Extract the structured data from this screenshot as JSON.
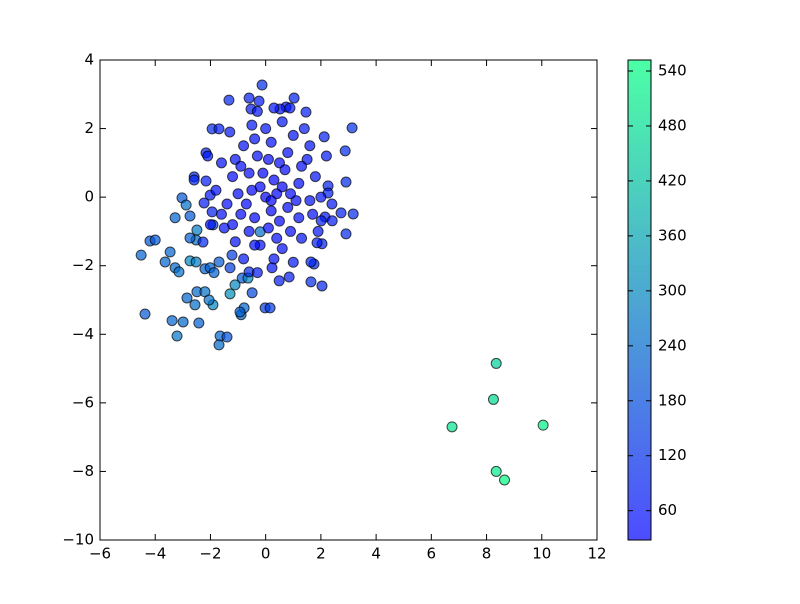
{
  "chart_data": {
    "type": "scatter",
    "x": [
      8.35,
      8.25,
      6.75,
      10.05,
      8.35,
      8.65,
      -4.51,
      -4.37,
      -4.19,
      -4.0,
      -3.64,
      -3.46,
      -3.28,
      -3.14,
      -3.39,
      -3.21,
      -2.99,
      -2.85,
      -2.56,
      -2.42,
      -2.49,
      -2.2,
      -1.91,
      -2.05,
      -1.65,
      -1.4,
      -1.69,
      -1.29,
      -1.11,
      -0.89,
      -0.78,
      -0.93,
      -0.49,
      -0.02,
      0.16,
      -2.74,
      -2.52,
      -2.52,
      -2.49,
      -3.03,
      -2.88,
      -2.74,
      -3.28,
      -2.74,
      -2.2,
      -2.01,
      -1.87,
      -1.69,
      -1.29,
      -0.85,
      -0.64,
      -0.6,
      -1.22,
      -0.2,
      -1.91,
      -2.27,
      -0.13,
      -1.33,
      -0.6,
      -0.24,
      1.03,
      -0.53,
      0.74,
      0.88,
      0.52,
      1.46,
      -1.94,
      -1.69,
      3.13,
      2.12,
      2.88,
      -2.16,
      -2.59,
      -2.59,
      -2.16,
      2.91,
      2.26,
      2.26,
      3.17,
      2.73,
      2.15,
      2.01,
      2.41,
      2.91,
      2.04,
      1.86,
      2.04,
      1.64,
      1.75,
      1.64,
      0.85,
      0.49,
      0.23,
      -1.94,
      -2.01,
      -2.23,
      0,
      0.3,
      -0.5,
      0.8,
      -0.9,
      0.5,
      -0.3,
      1.2,
      -1.2,
      0.1,
      -0.6,
      0.9,
      1.5,
      -1.4,
      0.2,
      -0.8,
      1.0,
      -1.6,
      1.7,
      -0.2,
      0.6,
      1.3,
      -1.1,
      0.4,
      -0.1,
      0.7,
      -0.7,
      0.2,
      1.1,
      -1.0,
      -0.4,
      0.5,
      1.8,
      -1.8,
      0.0,
      -0.5,
      0.6,
      1.4,
      -1.3,
      2.0,
      -2.0,
      1.9,
      -1.5,
      0.3,
      -0.8,
      1.0,
      -0.3,
      0.8,
      -1.1,
      1.3,
      -0.2,
      0.6,
      -0.6,
      0.2,
      1.6,
      -1.6,
      -0.4,
      0.9,
      -0.9,
      0.1,
      1.2,
      -1.2,
      0.4,
      -0.4,
      2.2,
      -2.1,
      1.6,
      2.4,
      -0.3,
      0.3
    ],
    "y": [
      -4.85,
      -5.9,
      -6.7,
      -6.65,
      -8.0,
      -8.25,
      -1.69,
      -3.41,
      -1.28,
      -1.25,
      -1.89,
      -1.6,
      -2.06,
      -2.18,
      -3.6,
      -4.05,
      -3.64,
      -2.94,
      -3.14,
      -3.67,
      -2.76,
      -2.76,
      -3.14,
      -3.0,
      -4.05,
      -4.08,
      -4.31,
      -2.82,
      -2.56,
      -3.43,
      -3.23,
      -3.35,
      -2.79,
      -3.23,
      -3.23,
      -1.86,
      -1.89,
      -1.25,
      -0.96,
      -0.02,
      -0.23,
      -0.55,
      -0.6,
      -1.19,
      -2.09,
      -2.06,
      -2.2,
      -1.89,
      -2.06,
      -2.36,
      -2.36,
      -2.18,
      -1.69,
      -1.01,
      -0.81,
      -1.31,
      3.27,
      2.83,
      2.89,
      2.8,
      2.89,
      2.57,
      2.63,
      2.6,
      2.57,
      2.48,
      1.99,
      1.99,
      2.02,
      1.76,
      1.35,
      1.29,
      0.59,
      0.5,
      0.47,
      0.44,
      0.33,
      0.12,
      -0.49,
      -0.46,
      -0.58,
      -0.69,
      -0.69,
      -1.07,
      -1.36,
      -1.33,
      -2.59,
      -2.47,
      -1.95,
      -1.89,
      -2.33,
      -2.44,
      -2.06,
      -0.43,
      0.06,
      -0.17,
      0,
      0.5,
      0.2,
      -0.3,
      -0.5,
      1.0,
      1.2,
      0.4,
      0.6,
      -0.9,
      -1.0,
      -1.0,
      1.1,
      -0.2,
      1.6,
      1.5,
      1.8,
      1.0,
      -0.5,
      -1.4,
      -1.5,
      -1.2,
      -1.3,
      0.1,
      0.7,
      0.8,
      -0.2,
      -0.4,
      -0.1,
      0.1,
      -0.6,
      -0.7,
      0.6,
      0.2,
      2.0,
      2.1,
      2.2,
      2.0,
      1.9,
      0.0,
      -0.8,
      -1.0,
      -0.9,
      -1.8,
      -1.8,
      -1.9,
      -2.2,
      1.3,
      1.1,
      0.9,
      0.3,
      0.3,
      0.7,
      -0.1,
      -0.1,
      -0.5,
      1.7,
      0.1,
      0.9,
      1.1,
      -0.6,
      -0.8,
      -1.2,
      -1.4,
      1.2,
      1.2,
      1.5,
      -0.2,
      2.5,
      2.6
    ],
    "c": [
      450,
      470,
      500,
      520,
      510,
      540,
      230,
      210,
      200,
      200,
      230,
      230,
      240,
      250,
      230,
      270,
      240,
      230,
      250,
      220,
      240,
      260,
      300,
      260,
      230,
      190,
      240,
      320,
      300,
      240,
      230,
      220,
      170,
      150,
      140,
      300,
      280,
      250,
      280,
      200,
      250,
      200,
      230,
      220,
      220,
      230,
      220,
      210,
      150,
      200,
      300,
      100,
      150,
      250,
      170,
      100,
      120,
      100,
      80,
      70,
      90,
      70,
      60,
      70,
      60,
      80,
      110,
      80,
      120,
      90,
      110,
      100,
      100,
      100,
      80,
      110,
      90,
      90,
      110,
      90,
      70,
      80,
      80,
      110,
      90,
      80,
      100,
      110,
      110,
      100,
      80,
      80,
      60,
      90,
      70,
      80,
      30,
      35,
      35,
      40,
      40,
      40,
      45,
      45,
      45,
      40,
      45,
      45,
      55,
      45,
      50,
      55,
      60,
      60,
      55,
      50,
      55,
      60,
      55,
      30,
      35,
      40,
      35,
      30,
      40,
      40,
      35,
      35,
      60,
      55,
      60,
      70,
      70,
      75,
      70,
      60,
      60,
      65,
      55,
      60,
      65,
      70,
      75,
      45,
      50,
      45,
      30,
      35,
      40,
      30,
      50,
      50,
      55,
      38,
      45,
      40,
      48,
      48,
      45,
      48,
      75,
      70,
      60,
      70,
      65,
      65
    ],
    "xlim": [
      -6,
      12
    ],
    "xticks": [
      {
        "value": -6,
        "label": "−6"
      },
      {
        "value": -4,
        "label": "−4"
      },
      {
        "value": -2,
        "label": "−2"
      },
      0,
      2,
      4,
      6,
      8,
      10,
      12
    ],
    "ylim": [
      -10,
      4
    ],
    "yticks": [
      {
        "value": -10,
        "label": "−10"
      },
      {
        "value": -8,
        "label": "−8"
      },
      {
        "value": -6,
        "label": "−6"
      },
      {
        "value": -4,
        "label": "−4"
      },
      {
        "value": -2,
        "label": "−2"
      },
      0,
      2,
      4
    ],
    "colormap": "winter",
    "clim": [
      28,
      552
    ],
    "cticks": [
      60,
      120,
      180,
      240,
      300,
      360,
      420,
      480,
      540
    ]
  }
}
